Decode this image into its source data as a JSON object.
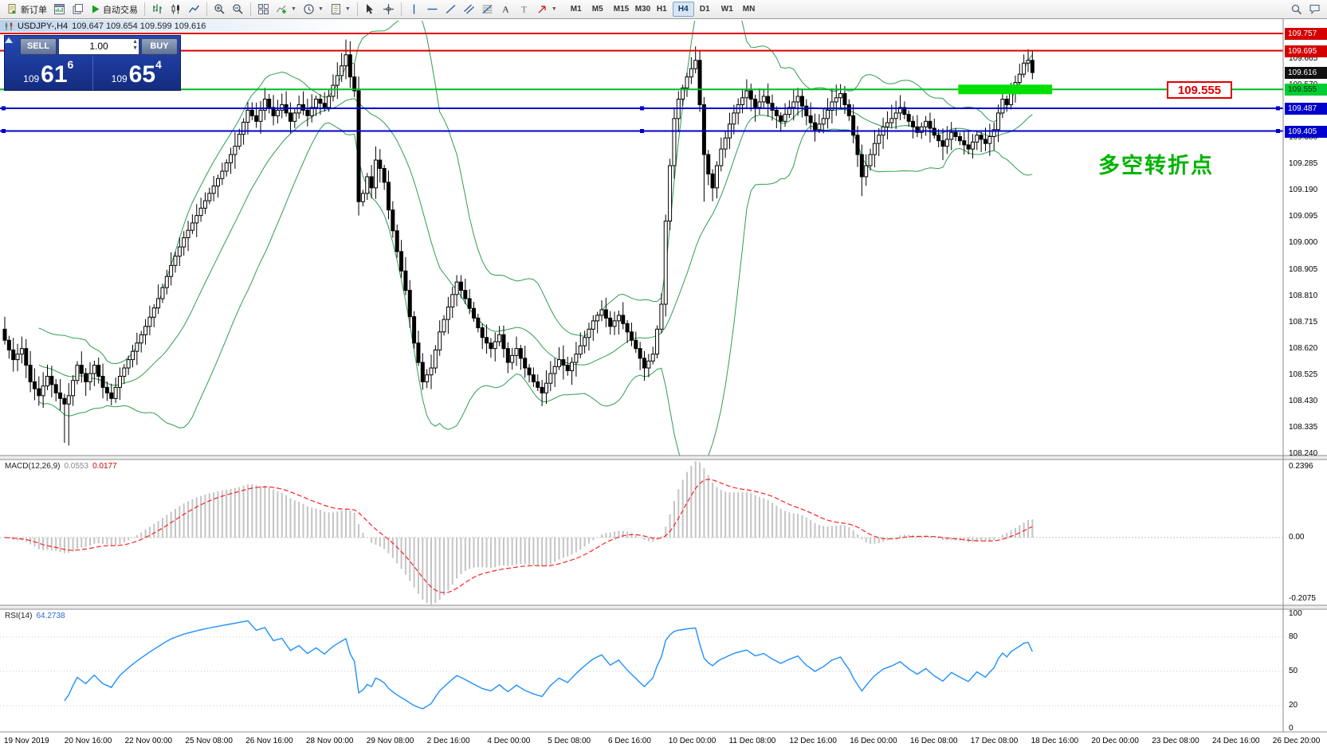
{
  "toolbar": {
    "new_order_label": "新订单",
    "autotrading_label": "自动交易",
    "timeframes": [
      "M1",
      "M5",
      "M15",
      "M30",
      "H1",
      "H4",
      "D1",
      "W1",
      "MN"
    ],
    "active_timeframe": "H4",
    "icon_names": [
      "new-order-icon",
      "chart-window-icon",
      "profiles-icon",
      "autotrading-icon",
      "ohlc-bars-icon",
      "candlestick-icon",
      "line-chart-icon",
      "zoom-in-icon",
      "zoom-out-icon",
      "tile-windows-icon",
      "indicators-icon",
      "periods-icon",
      "templates-icon",
      "cursor-icon",
      "crosshair-icon",
      "vertical-line-icon",
      "horizontal-line-icon",
      "trendline-icon",
      "channel-icon",
      "fibonacci-icon",
      "text-icon",
      "label-icon",
      "arrows-icon",
      "search-icon",
      "chat-icon"
    ]
  },
  "caption": {
    "symbol_title": "USDJPY-,H4",
    "ohlc": "109.647 109.654 109.599 109.616"
  },
  "trade_panel": {
    "sell_label": "SELL",
    "buy_label": "BUY",
    "volume": "1.00",
    "sell_price_small": "109",
    "sell_price_big": "61",
    "sell_price_sup": "6",
    "buy_price_small": "109",
    "buy_price_big": "65",
    "buy_price_sup": "4"
  },
  "indicators": {
    "macd_label": "MACD(12,26,9)",
    "macd_v1": "0.0553",
    "macd_v2": "0.0177",
    "rsi_label": "RSI(14)",
    "rsi_value": "64.2738"
  },
  "chart": {
    "type": "candlestick",
    "symbol": "USDJPY-",
    "period": "H4",
    "colors": {
      "up_candle": "#ffffff",
      "down_candle": "#000000",
      "outline": "#000000",
      "bollinger": "#2e9e4f",
      "macd_hist": "#c4c4c4",
      "macd_signal": "#ff2020",
      "rsi_line": "#1e90ff",
      "red_line": "#dd0000",
      "green_line": "#00bb22",
      "blue_line": "#0000cc",
      "highlight": "#00e000"
    },
    "close_path": [
      [
        0,
        108.65
      ],
      [
        2,
        108.58
      ],
      [
        4,
        108.62
      ],
      [
        6,
        108.5
      ],
      [
        8,
        108.45
      ],
      [
        10,
        108.52
      ],
      [
        12,
        108.46
      ],
      [
        14,
        108.42
      ],
      [
        15,
        108.45
      ],
      [
        17,
        108.56
      ],
      [
        19,
        108.5
      ],
      [
        21,
        108.56
      ],
      [
        23,
        108.48
      ],
      [
        25,
        108.44
      ],
      [
        27,
        108.52
      ],
      [
        29,
        108.58
      ],
      [
        31,
        108.64
      ],
      [
        33,
        108.7
      ],
      [
        36,
        108.8
      ],
      [
        39,
        108.92
      ],
      [
        42,
        109.02
      ],
      [
        45,
        109.1
      ],
      [
        48,
        109.18
      ],
      [
        51,
        109.26
      ],
      [
        54,
        109.35
      ],
      [
        57,
        109.48
      ],
      [
        59,
        109.44
      ],
      [
        61,
        109.52
      ],
      [
        63,
        109.46
      ],
      [
        65,
        109.5
      ],
      [
        67,
        109.44
      ],
      [
        69,
        109.5
      ],
      [
        71,
        109.46
      ],
      [
        73,
        109.52
      ],
      [
        75,
        109.49
      ],
      [
        77,
        109.57
      ],
      [
        79,
        109.64
      ],
      [
        80,
        109.68
      ],
      [
        81,
        109.6
      ],
      [
        82,
        109.55
      ],
      [
        83,
        109.15
      ],
      [
        84,
        109.18
      ],
      [
        85,
        109.24
      ],
      [
        86,
        109.2
      ],
      [
        87,
        109.3
      ],
      [
        88,
        109.27
      ],
      [
        89,
        109.22
      ],
      [
        90,
        109.12
      ],
      [
        92,
        108.97
      ],
      [
        94,
        108.83
      ],
      [
        96,
        108.64
      ],
      [
        98,
        108.5
      ],
      [
        100,
        108.55
      ],
      [
        102,
        108.68
      ],
      [
        104,
        108.77
      ],
      [
        106,
        108.86
      ],
      [
        108,
        108.8
      ],
      [
        110,
        108.73
      ],
      [
        112,
        108.66
      ],
      [
        114,
        108.62
      ],
      [
        116,
        108.67
      ],
      [
        118,
        108.57
      ],
      [
        120,
        108.62
      ],
      [
        122,
        108.55
      ],
      [
        124,
        108.5
      ],
      [
        126,
        108.46
      ],
      [
        128,
        108.53
      ],
      [
        130,
        108.58
      ],
      [
        132,
        108.54
      ],
      [
        134,
        108.6
      ],
      [
        136,
        108.66
      ],
      [
        138,
        108.72
      ],
      [
        140,
        108.76
      ],
      [
        142,
        108.7
      ],
      [
        144,
        108.74
      ],
      [
        146,
        108.68
      ],
      [
        148,
        108.62
      ],
      [
        150,
        108.55
      ],
      [
        152,
        108.6
      ],
      [
        154,
        108.78
      ],
      [
        155,
        109.08
      ],
      [
        156,
        109.28
      ],
      [
        157,
        109.45
      ],
      [
        158,
        109.52
      ],
      [
        159,
        109.56
      ],
      [
        160,
        109.6
      ],
      [
        161,
        109.63
      ],
      [
        162,
        109.66
      ],
      [
        163,
        109.5
      ],
      [
        164,
        109.32
      ],
      [
        165,
        109.25
      ],
      [
        166,
        109.2
      ],
      [
        167,
        109.28
      ],
      [
        168,
        109.34
      ],
      [
        169,
        109.38
      ],
      [
        170,
        109.43
      ],
      [
        171,
        109.47
      ],
      [
        172,
        109.5
      ],
      [
        174,
        109.55
      ],
      [
        176,
        109.49
      ],
      [
        178,
        109.53
      ],
      [
        180,
        109.48
      ],
      [
        182,
        109.44
      ],
      [
        184,
        109.49
      ],
      [
        186,
        109.53
      ],
      [
        188,
        109.46
      ],
      [
        190,
        109.41
      ],
      [
        192,
        109.45
      ],
      [
        194,
        109.51
      ],
      [
        196,
        109.54
      ],
      [
        198,
        109.46
      ],
      [
        200,
        109.32
      ],
      [
        201,
        109.24
      ],
      [
        202,
        109.28
      ],
      [
        204,
        109.36
      ],
      [
        206,
        109.42
      ],
      [
        208,
        109.45
      ],
      [
        210,
        109.49
      ],
      [
        212,
        109.44
      ],
      [
        214,
        109.4
      ],
      [
        216,
        109.44
      ],
      [
        218,
        109.39
      ],
      [
        220,
        109.35
      ],
      [
        222,
        109.4
      ],
      [
        224,
        109.37
      ],
      [
        226,
        109.34
      ],
      [
        228,
        109.39
      ],
      [
        230,
        109.36
      ],
      [
        232,
        109.41
      ],
      [
        233,
        109.47
      ],
      [
        234,
        109.52
      ],
      [
        235,
        109.5
      ],
      [
        236,
        109.55
      ],
      [
        237,
        109.58
      ],
      [
        238,
        109.61
      ],
      [
        239,
        109.65
      ],
      [
        240,
        109.66
      ],
      [
        241,
        109.616
      ]
    ],
    "wick_overrides": {
      "14": {
        "low": 108.28
      },
      "15": {
        "low": 108.27
      },
      "80": {
        "high": 109.735
      },
      "83": {
        "low": 109.1
      },
      "162": {
        "high": 109.71
      },
      "164": {
        "low": 109.15
      },
      "201": {
        "low": 109.17
      },
      "240": {
        "high": 109.7
      }
    },
    "hlines": [
      {
        "price": 109.757,
        "color": "#dd0000",
        "width": 2,
        "selected": false,
        "name": "red-resistance-line-1"
      },
      {
        "price": 109.695,
        "color": "#dd0000",
        "width": 2,
        "selected": false,
        "name": "red-resistance-line-2"
      },
      {
        "price": 109.555,
        "color": "#00bb22",
        "width": 2,
        "selected": false,
        "name": "green-pivot-line"
      },
      {
        "price": 109.487,
        "color": "#0000cc",
        "width": 2,
        "selected": true,
        "name": "blue-support-line-1"
      },
      {
        "price": 109.405,
        "color": "#0000cc",
        "width": 2,
        "selected": true,
        "name": "blue-support-line-2"
      }
    ],
    "highlight_rect": {
      "index_from": 224,
      "index_to": 246,
      "price": 109.555,
      "half_height": 6,
      "color": "#00e000"
    },
    "callout": {
      "text": "109.555"
    },
    "annotation": {
      "text": "多空转折点"
    },
    "y_axis_labels": [
      "109.665",
      "109.570",
      "109.475",
      "109.380",
      "109.285",
      "109.190",
      "109.095",
      "109.000",
      "108.905",
      "108.810",
      "108.715",
      "108.620",
      "108.525",
      "108.430",
      "108.335",
      "108.240"
    ],
    "axis_tags": [
      {
        "price": 109.757,
        "text": "109.757",
        "bg": "#d40000",
        "fg": "#ffffff"
      },
      {
        "price": 109.695,
        "text": "109.695",
        "bg": "#d40000",
        "fg": "#ffffff"
      },
      {
        "price": 109.616,
        "text": "109.616",
        "bg": "#111111",
        "fg": "#ffffff"
      },
      {
        "price": 109.555,
        "text": "109.555",
        "bg": "#00cc33",
        "fg": "#002b00"
      },
      {
        "price": 109.487,
        "text": "109.487",
        "bg": "#0000cc",
        "fg": "#ffffff"
      },
      {
        "price": 109.405,
        "text": "109.405",
        "bg": "#0000cc",
        "fg": "#ffffff"
      }
    ],
    "macd": {
      "fast": 12,
      "slow": 26,
      "signal": 9,
      "axis_labels": [
        [
          "0.2396",
          586
        ],
        [
          "0.00",
          675
        ],
        [
          "-0.2075",
          752
        ]
      ]
    },
    "rsi": {
      "period": 14,
      "levels": [
        80,
        50,
        20
      ],
      "axis_labels": [
        [
          "100",
          771
        ],
        [
          "80",
          800
        ],
        [
          "50",
          843
        ],
        [
          "20",
          886
        ],
        [
          "0",
          915
        ]
      ]
    },
    "time_axis_labels": [
      "19 Nov 2019",
      "20 Nov 16:00",
      "22 Nov 00:00",
      "25 Nov 08:00",
      "26 Nov 16:00",
      "28 Nov 00:00",
      "29 Nov 08:00",
      "2 Dec 16:00",
      "4 Dec 00:00",
      "5 Dec 08:00",
      "6 Dec 16:00",
      "10 Dec 00:00",
      "11 Dec 08:00",
      "12 Dec 16:00",
      "16 Dec 00:00",
      "16 Dec 08:00",
      "17 Dec 08:00",
      "18 Dec 16:00",
      "20 Dec 00:00",
      "23 Dec 08:00",
      "24 Dec 16:00",
      "26 Dec 20:00"
    ]
  }
}
